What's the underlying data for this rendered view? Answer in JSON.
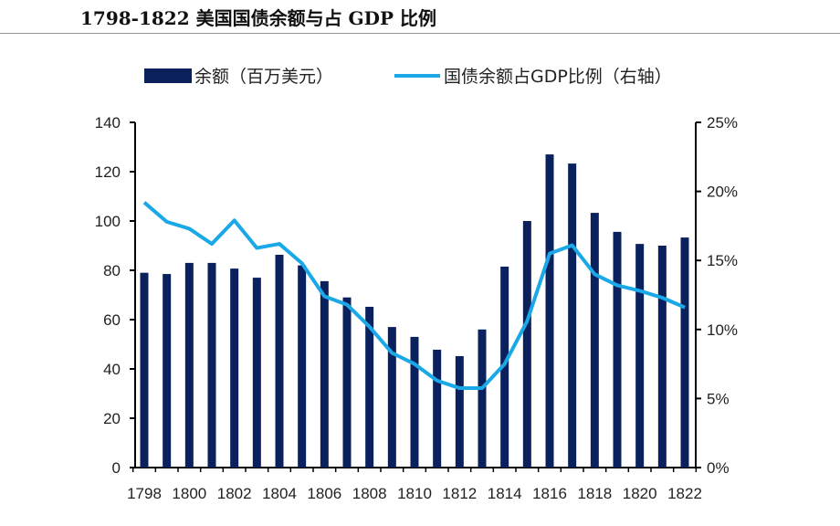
{
  "title": "1798-1822  美国国债余额与占 GDP 比例",
  "chart_data": {
    "type": "bar+line",
    "categories": [
      1798,
      1799,
      1800,
      1801,
      1802,
      1803,
      1804,
      1805,
      1806,
      1807,
      1808,
      1809,
      1810,
      1811,
      1812,
      1813,
      1814,
      1815,
      1816,
      1817,
      1818,
      1819,
      1820,
      1821,
      1822
    ],
    "x_tick_labels": [
      "1798",
      "1800",
      "1802",
      "1804",
      "1806",
      "1808",
      "1810",
      "1812",
      "1814",
      "1816",
      "1818",
      "1820",
      "1822"
    ],
    "series": [
      {
        "name": "余额（百万美元）",
        "type": "bar",
        "axis": "left",
        "color": "#0b215e",
        "values": [
          79,
          78.5,
          83,
          83,
          80.7,
          77,
          86.3,
          82,
          75.6,
          69,
          65.2,
          57,
          53,
          47.8,
          45.2,
          56,
          81.5,
          100,
          127,
          123.3,
          103.3,
          95.6,
          90.7,
          90,
          93.3
        ]
      },
      {
        "name": "国债余额占GDP比例（右轴）",
        "type": "line",
        "axis": "right",
        "color": "#1aa8e6",
        "values": [
          19.2,
          17.8,
          17.3,
          16.2,
          17.9,
          15.9,
          16.2,
          14.8,
          12.4,
          11.8,
          10.2,
          8.3,
          7.5,
          6.3,
          5.75,
          5.75,
          7.5,
          10.6,
          15.5,
          16.1,
          14.0,
          13.2,
          12.8,
          12.3,
          11.6
        ]
      }
    ],
    "left_axis": {
      "ylim": [
        0,
        140
      ],
      "ticks": [
        "0",
        "20",
        "40",
        "60",
        "80",
        "100",
        "120",
        "140"
      ]
    },
    "right_axis": {
      "ylim": [
        0,
        25
      ],
      "unit": "%",
      "ticks": [
        "0%",
        "5%",
        "10%",
        "15%",
        "20%",
        "25%"
      ]
    },
    "legend": "top",
    "grid": false
  }
}
